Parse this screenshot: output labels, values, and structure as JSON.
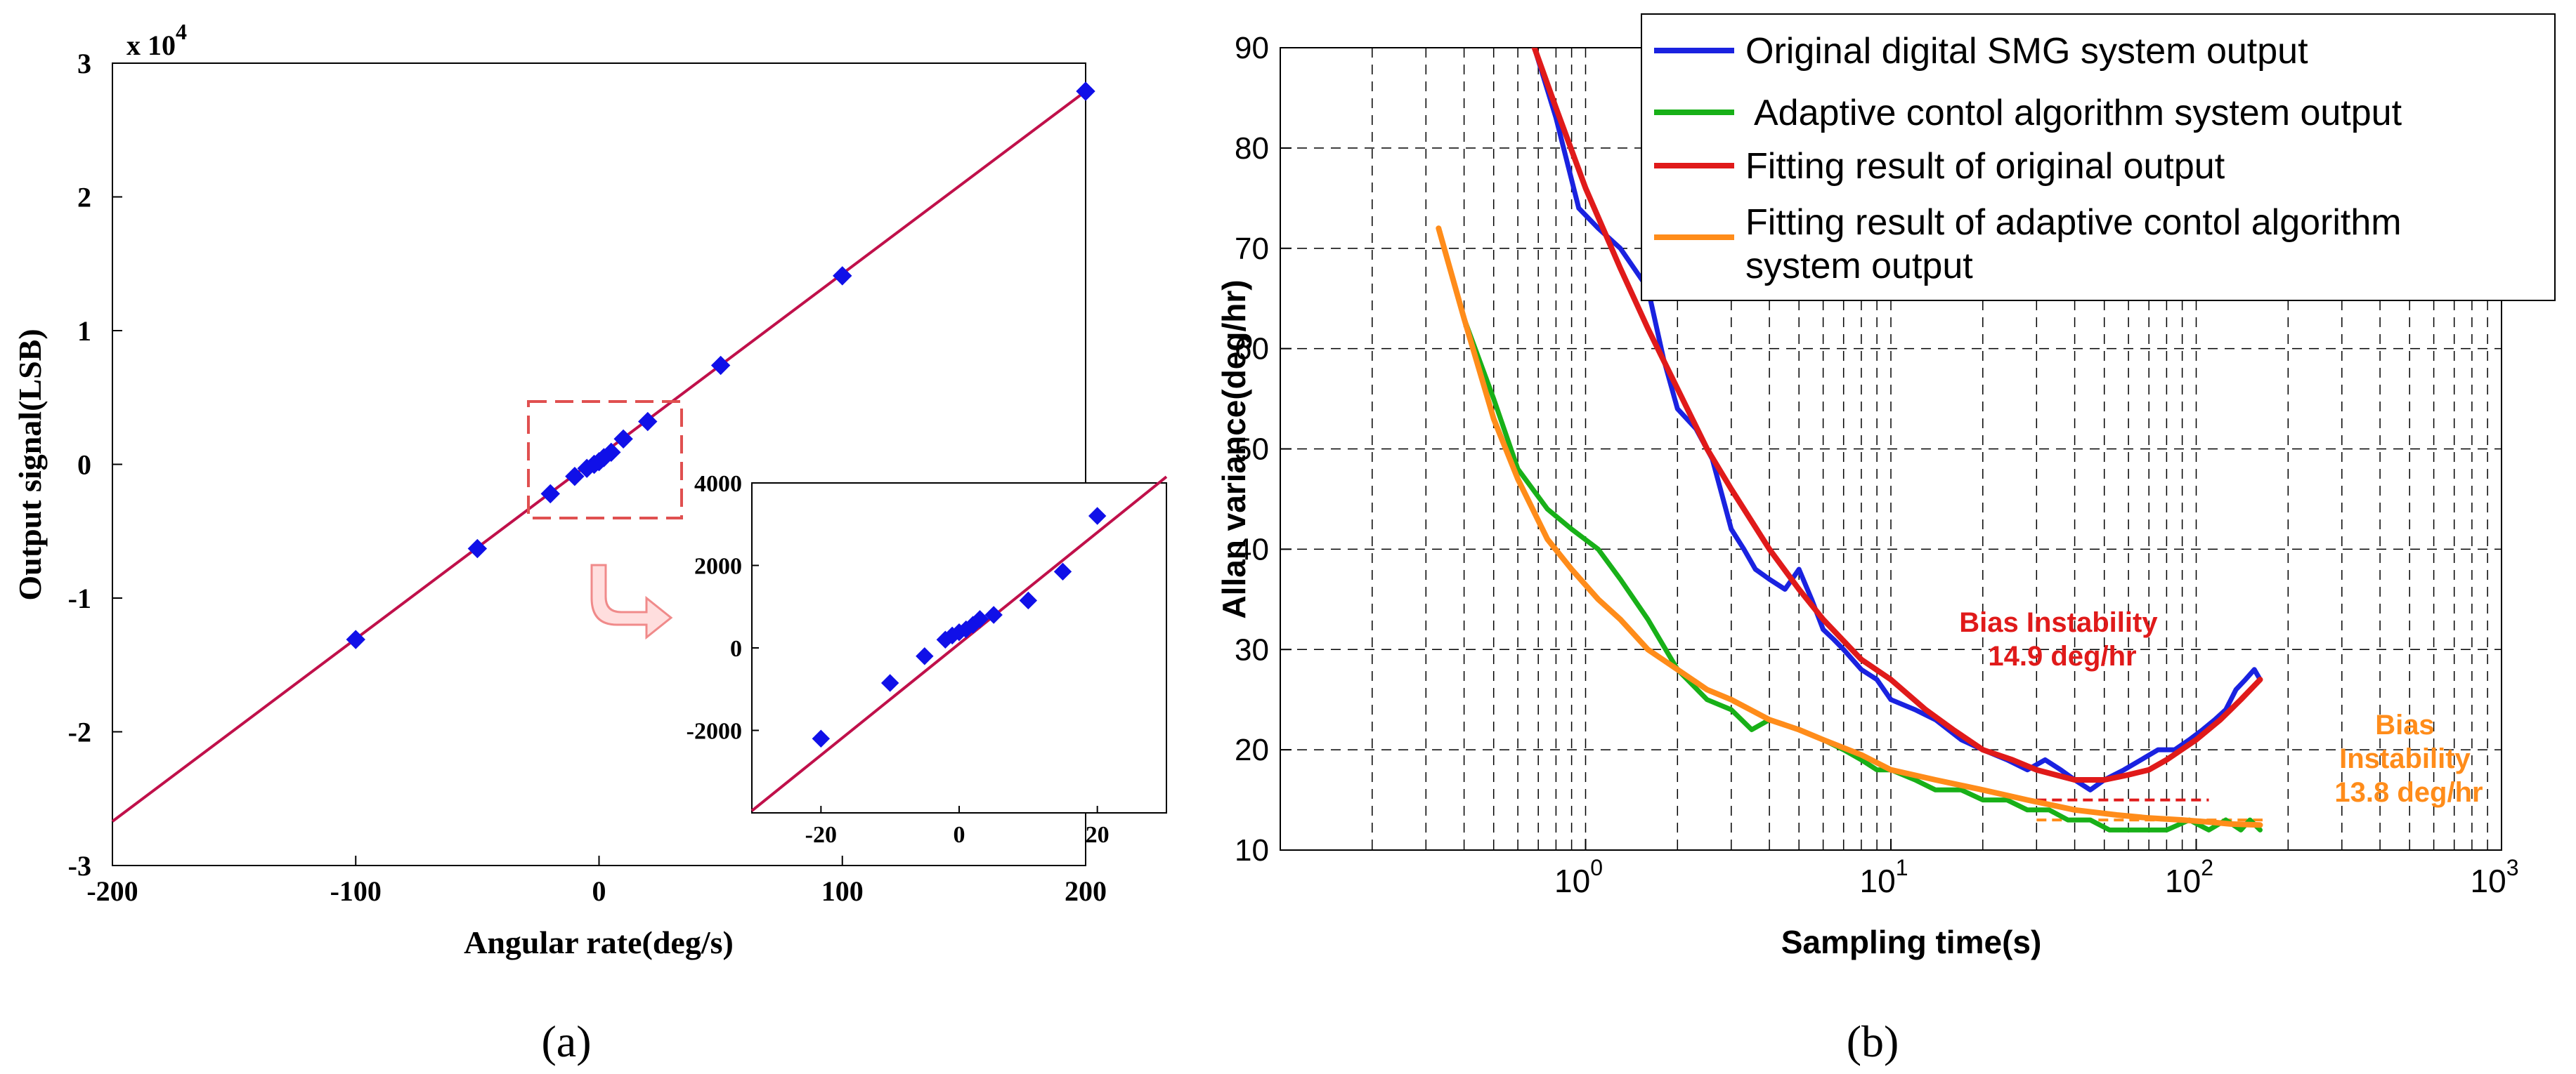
{
  "chart_data": [
    {
      "id": "a",
      "type": "scatter",
      "caption": "(a)",
      "xlabel": "Angular rate(deg/s)",
      "ylabel": "Output signal(LSB)",
      "exponent_label": "x 10",
      "exponent_power": "4",
      "xlim": [
        -200,
        200
      ],
      "ylim": [
        -3,
        3
      ],
      "xticks": [
        -200,
        -100,
        0,
        100,
        200
      ],
      "xtick_labels": [
        "-200",
        "-100",
        "0",
        "100",
        "200"
      ],
      "yticks": [
        3,
        2,
        1,
        0,
        -1,
        -2,
        -3
      ],
      "ytick_labels": [
        "3",
        "2",
        "1",
        "0",
        "-1",
        "-2",
        "-3"
      ],
      "fit_line": {
        "x": [
          -200,
          200
        ],
        "y": [
          -2.67,
          2.79
        ],
        "color": "#c0104a"
      },
      "marker_color": "#1010e8",
      "points": {
        "x": [
          -100,
          -50,
          -20,
          -10,
          -5,
          -2,
          0,
          2,
          5,
          10,
          20,
          50,
          100,
          200
        ],
        "y": [
          -1.31,
          -0.63,
          -0.22,
          -0.09,
          -0.03,
          0.0,
          0.02,
          0.05,
          0.09,
          0.19,
          0.32,
          0.74,
          1.41,
          2.79
        ]
      },
      "inset": {
        "xlim": [
          -30,
          30
        ],
        "ylim": [
          -4000,
          4000
        ],
        "xticks": [
          -20,
          0,
          20
        ],
        "xtick_labels": [
          "-20",
          "0",
          "20"
        ],
        "yticks": [
          4000,
          2000,
          0,
          -2000
        ],
        "ytick_labels": [
          "4000",
          "2000",
          "0",
          "-2000"
        ],
        "fit_line": {
          "x": [
            -30,
            30
          ],
          "y": [
            -3950,
            4150
          ]
        },
        "points": {
          "x": [
            -20,
            -10,
            -5,
            -2,
            -1,
            0,
            1,
            2,
            3,
            5,
            10,
            15,
            20
          ],
          "y": [
            -2200,
            -850,
            -200,
            200,
            300,
            380,
            450,
            560,
            700,
            800,
            1150,
            1850,
            3200
          ]
        }
      }
    },
    {
      "id": "b",
      "type": "line",
      "caption": "(b)",
      "xscale": "log",
      "xlabel": "Sampling time(s)",
      "ylabel": "Allan variance(deg/hr)",
      "xlim": [
        0.1,
        1000
      ],
      "ylim": [
        10,
        90
      ],
      "xtick_base": "10",
      "xtick_powers": [
        "0",
        "1",
        "2",
        "3"
      ],
      "xtick_values": [
        1,
        10,
        100,
        1000
      ],
      "yticks": [
        90,
        80,
        70,
        60,
        50,
        40,
        30,
        20,
        10
      ],
      "ytick_labels": [
        "90",
        "80",
        "70",
        "60",
        "50",
        "40",
        "30",
        "20",
        "10"
      ],
      "legend_position": "top-right",
      "series": [
        {
          "name": "Original digital SMG system output",
          "color": "#1a22e0",
          "x": [
            0.68,
            0.8,
            0.95,
            1.1,
            1.3,
            1.6,
            1.8,
            2.0,
            2.3,
            2.6,
            3.0,
            3.3,
            3.6,
            4.0,
            4.5,
            5.0,
            5.5,
            6.0,
            6.5,
            7.0,
            8.0,
            9.0,
            10,
            12,
            14,
            17,
            20,
            24,
            28,
            32,
            36,
            40,
            45,
            50,
            58,
            66,
            75,
            85,
            95,
            105,
            115,
            125,
            135,
            145,
            155,
            162
          ],
          "y": [
            90,
            83,
            74,
            72,
            70,
            66,
            59,
            54,
            52,
            49,
            42,
            40,
            38,
            37,
            36,
            38,
            35,
            32,
            31,
            30,
            28,
            27,
            25,
            24,
            23,
            21,
            20,
            19,
            18,
            19,
            18,
            17,
            16,
            17,
            18,
            19,
            20,
            20,
            21,
            22,
            23,
            24,
            26,
            27,
            28,
            27
          ]
        },
        {
          "name": "Adaptive contol algorithm system output",
          "color": "#18b018",
          "x": [
            0.33,
            0.4,
            0.5,
            0.6,
            0.75,
            0.9,
            1.1,
            1.3,
            1.6,
            2.0,
            2.5,
            3.0,
            3.5,
            4.0,
            5.0,
            6.0,
            7.0,
            8.0,
            9.0,
            10,
            12,
            14,
            17,
            20,
            24,
            28,
            33,
            38,
            45,
            52,
            60,
            70,
            80,
            95,
            110,
            125,
            140,
            150,
            162
          ],
          "y": [
            72,
            63,
            55,
            48,
            44,
            42,
            40,
            37,
            33,
            28,
            25,
            24,
            22,
            23,
            22,
            21,
            20,
            19,
            18,
            18,
            17,
            16,
            16,
            15,
            15,
            14,
            14,
            13,
            13,
            12,
            12,
            12,
            12,
            13,
            12,
            13,
            12,
            13,
            12
          ]
        },
        {
          "name": "Fitting result of original output",
          "color": "#e01a1a",
          "x": [
            0.68,
            0.8,
            1.0,
            1.3,
            1.6,
            2.0,
            2.5,
            3.0,
            4.0,
            5.0,
            6.0,
            8.0,
            10,
            13,
            16,
            20,
            25,
            30,
            40,
            50,
            60,
            70,
            80,
            100,
            120,
            140,
            162
          ],
          "y": [
            90,
            84,
            76,
            68,
            62,
            56,
            50,
            46,
            40,
            36,
            33,
            29,
            27,
            24,
            22,
            20,
            19,
            18,
            17,
            17,
            17.5,
            18,
            19,
            21,
            23,
            25,
            27
          ]
        },
        {
          "name": "Fitting result of adaptive contol algorithm system output",
          "color": "#ff8c1a",
          "x": [
            0.33,
            0.4,
            0.5,
            0.6,
            0.75,
            0.9,
            1.1,
            1.3,
            1.6,
            2.0,
            2.5,
            3.0,
            4.0,
            5.0,
            6.0,
            8.0,
            10,
            14,
            20,
            28,
            40,
            55,
            70,
            90,
            110,
            130,
            162
          ],
          "y": [
            72,
            63,
            53,
            47,
            41,
            38,
            35,
            33,
            30,
            28,
            26,
            25,
            23,
            22,
            21,
            19.5,
            18,
            17,
            16,
            15,
            14,
            13.5,
            13.2,
            13,
            12.8,
            12.6,
            12.5
          ]
        }
      ],
      "reference_lines": [
        {
          "color": "#e01a1a",
          "x": [
            30,
            110
          ],
          "y": [
            15,
            15
          ]
        },
        {
          "color": "#ff8c1a",
          "x": [
            30,
            165
          ],
          "y": [
            13,
            13
          ]
        }
      ],
      "annotations": [
        {
          "lines": [
            "Bias Instability",
            "14.9 deg/hr"
          ],
          "color": "#e01a1a"
        },
        {
          "lines": [
            "Bias",
            "Instability",
            "13.8 deg/hr"
          ],
          "color": "#ff8c1a"
        }
      ]
    }
  ]
}
